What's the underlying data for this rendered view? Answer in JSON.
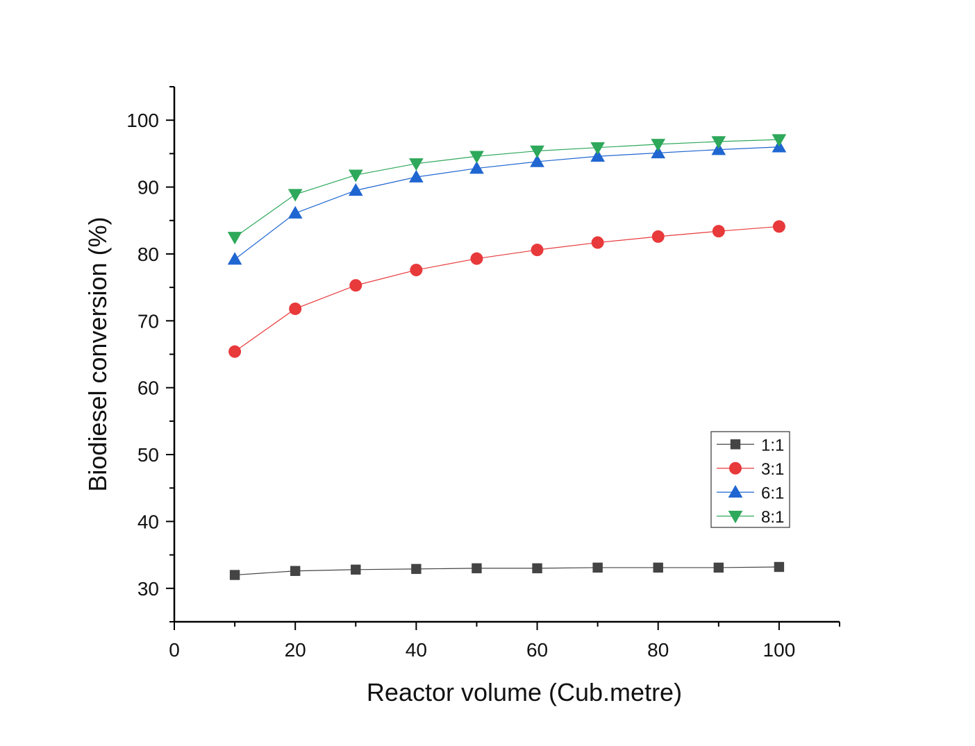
{
  "chart_data": {
    "type": "line",
    "title": "",
    "xlabel": "Reactor volume (Cub.metre)",
    "ylabel": "Biodiesel conversion (%)",
    "xlim": [
      0,
      110
    ],
    "ylim": [
      25,
      105
    ],
    "x_ticks": [
      0,
      20,
      40,
      60,
      80,
      100
    ],
    "y_ticks": [
      30,
      40,
      50,
      60,
      70,
      80,
      90,
      100
    ],
    "grid": false,
    "legend_position": "right, lower-middle",
    "x": [
      10,
      20,
      30,
      40,
      50,
      60,
      70,
      80,
      90,
      100
    ],
    "series": [
      {
        "name": "1:1",
        "marker": "square",
        "color": "#444444",
        "values": [
          32.0,
          32.6,
          32.8,
          32.9,
          33.0,
          33.0,
          33.1,
          33.1,
          33.1,
          33.2
        ]
      },
      {
        "name": "3:1",
        "marker": "circle",
        "color": "#e8393b",
        "values": [
          65.4,
          71.8,
          75.3,
          77.6,
          79.3,
          80.6,
          81.7,
          82.6,
          83.4,
          84.1
        ]
      },
      {
        "name": "6:1",
        "marker": "triangle-up",
        "color": "#1f66d1",
        "values": [
          79.2,
          86.1,
          89.5,
          91.5,
          92.8,
          93.8,
          94.6,
          95.1,
          95.6,
          96.0
        ]
      },
      {
        "name": "8:1",
        "marker": "triangle-down",
        "color": "#2ea85a",
        "values": [
          82.5,
          88.9,
          91.8,
          93.5,
          94.6,
          95.4,
          95.9,
          96.4,
          96.8,
          97.1
        ]
      }
    ]
  }
}
